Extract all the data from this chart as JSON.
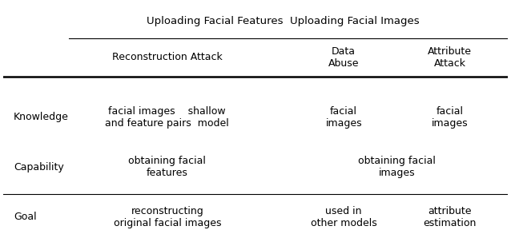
{
  "title": "",
  "background_color": "#ffffff",
  "figsize": [
    6.38,
    2.88
  ],
  "dpi": 100,
  "col0_header": "",
  "col_group_headers": {
    "uploading_facial_features": "Uploading Facial Features",
    "uploading_facial_images": "Uploading Facial Images"
  },
  "sub_headers": {
    "reconstruction_attack": "Reconstruction Attack",
    "data_abuse": "Data\nAbuse",
    "attribute_attack": "Attribute\nAttack"
  },
  "rows": {
    "Knowledge": {
      "reconstruction_attack": "facial images    shallow\nand feature pairs  model",
      "data_abuse": "facial\nimages",
      "attribute_attack": "facial\nimages"
    },
    "Capability": {
      "reconstruction_attack": "obtaining facial\nfeatures",
      "data_abuse": "obtaining facial\nimages",
      "attribute_attack": ""
    },
    "Goal": {
      "reconstruction_attack": "reconstructing\noriginal facial images",
      "data_abuse": "used in\nother models",
      "attribute_attack": "attribute\nestimation"
    }
  },
  "font_size": 9,
  "header_font_size": 9,
  "row_labels": [
    "Knowledge",
    "Capability",
    "Goal"
  ],
  "line_color": "#000000"
}
